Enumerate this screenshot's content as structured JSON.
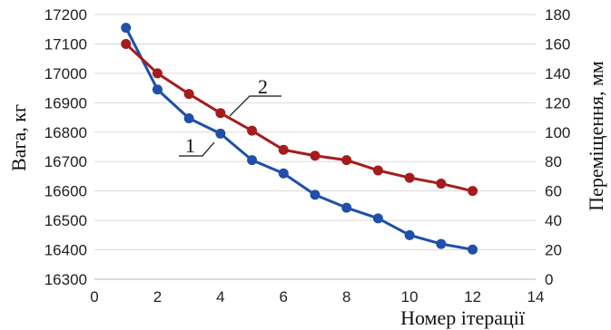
{
  "chart_data": {
    "type": "line",
    "xlabel": "Номер ітерації",
    "ylabel_left": "Вага, кг",
    "ylabel_right": "Переміщення, мм",
    "xlim": [
      0,
      14
    ],
    "xticks": [
      "0",
      "2",
      "4",
      "6",
      "8",
      "10",
      "12",
      "14"
    ],
    "ylim_left": [
      16300,
      17200
    ],
    "yticks_left": [
      "16300",
      "16400",
      "16500",
      "16600",
      "16700",
      "16800",
      "16900",
      "17000",
      "17100",
      "17200"
    ],
    "ylim_right": [
      0,
      180
    ],
    "yticks_right": [
      "0",
      "20",
      "40",
      "60",
      "80",
      "100",
      "120",
      "140",
      "160",
      "180"
    ],
    "grid": "horizontal",
    "series": [
      {
        "label": "1",
        "axis": "left",
        "color": "#1f4fa8",
        "x": [
          1,
          2,
          3,
          4,
          5,
          6,
          7,
          8,
          9,
          10,
          11,
          12
        ],
        "values": [
          17155,
          16945,
          16847,
          16795,
          16705,
          16660,
          16587,
          16543,
          16507,
          16450,
          16420,
          16401
        ]
      },
      {
        "label": "2",
        "axis": "right",
        "color": "#a51c1c",
        "x": [
          1,
          2,
          3,
          4,
          5,
          6,
          7,
          8,
          9,
          10,
          11,
          12
        ],
        "values": [
          160,
          140,
          126,
          113,
          101,
          88,
          84,
          81,
          74,
          69,
          65,
          60
        ]
      }
    ]
  }
}
